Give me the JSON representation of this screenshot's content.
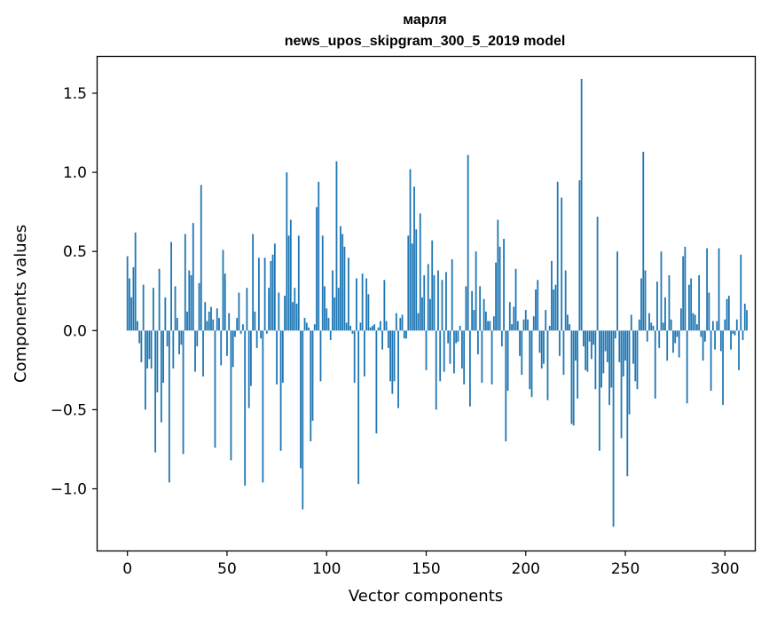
{
  "chart_data": {
    "type": "bar",
    "title": "марля",
    "subtitle": "news_upos_skipgram_300_5_2019 model",
    "xlabel": "Vector components",
    "ylabel": "Components values",
    "xlim": [
      -15,
      315
    ],
    "ylim": [
      -1.39,
      1.73
    ],
    "xticks": [
      0,
      50,
      100,
      150,
      200,
      250,
      300
    ],
    "xtick_labels": [
      "0",
      "50",
      "100",
      "150",
      "200",
      "250",
      "300"
    ],
    "yticks": [
      -1.0,
      -0.5,
      0.0,
      0.5,
      1.0,
      1.5
    ],
    "ytick_labels": [
      "−1.0",
      "−0.5",
      "0.0",
      "0.5",
      "1.0",
      "1.5"
    ],
    "bar_color": "#1f77b4",
    "values": [
      0.47,
      0.33,
      0.21,
      0.4,
      0.62,
      0.06,
      -0.08,
      -0.2,
      0.29,
      -0.5,
      -0.24,
      -0.18,
      -0.24,
      0.27,
      -0.77,
      -0.39,
      0.39,
      -0.58,
      -0.33,
      0.21,
      -0.1,
      -0.96,
      0.56,
      -0.24,
      0.28,
      0.08,
      -0.15,
      -0.09,
      -0.78,
      0.61,
      0.12,
      0.38,
      0.35,
      0.68,
      -0.26,
      -0.1,
      0.3,
      0.92,
      -0.29,
      0.18,
      0.06,
      0.12,
      0.15,
      0.07,
      -0.74,
      0.14,
      0.08,
      -0.22,
      0.51,
      0.36,
      -0.16,
      0.11,
      -0.82,
      -0.23,
      -0.04,
      0.08,
      0.24,
      -0.02,
      0.04,
      -0.98,
      0.27,
      -0.49,
      -0.35,
      0.61,
      0.12,
      -0.11,
      0.46,
      -0.05,
      -0.96,
      0.46,
      -0.02,
      0.27,
      0.44,
      0.48,
      0.55,
      -0.34,
      0.24,
      -0.76,
      -0.33,
      0.22,
      1.0,
      0.6,
      0.7,
      0.18,
      0.27,
      0.17,
      0.6,
      -0.87,
      -1.13,
      0.08,
      0.05,
      0.02,
      -0.7,
      -0.57,
      0.04,
      0.78,
      0.94,
      -0.32,
      0.6,
      0.28,
      0.14,
      0.08,
      -0.06,
      0.38,
      0.21,
      1.07,
      0.27,
      0.66,
      0.61,
      0.53,
      0.05,
      0.46,
      0.03,
      -0.02,
      -0.33,
      0.33,
      -0.97,
      0.05,
      0.36,
      -0.29,
      0.33,
      0.23,
      0.02,
      0.03,
      0.04,
      -0.65,
      0.02,
      0.06,
      -0.12,
      0.32,
      0.06,
      -0.11,
      -0.32,
      -0.4,
      -0.32,
      0.11,
      -0.49,
      0.08,
      0.1,
      -0.05,
      -0.05,
      0.6,
      1.02,
      0.55,
      0.91,
      0.64,
      0.11,
      0.74,
      0.21,
      0.35,
      -0.25,
      0.42,
      0.2,
      0.57,
      0.35,
      -0.5,
      0.38,
      -0.32,
      0.32,
      -0.26,
      0.37,
      -0.08,
      -0.21,
      0.45,
      -0.27,
      -0.08,
      -0.07,
      0.03,
      -0.24,
      -0.34,
      0.28,
      1.11,
      -0.48,
      0.25,
      0.13,
      0.5,
      -0.15,
      0.28,
      -0.33,
      0.2,
      0.12,
      0.06,
      0.06,
      -0.34,
      0.09,
      0.43,
      0.7,
      0.53,
      -0.1,
      0.58,
      -0.7,
      -0.38,
      0.18,
      0.04,
      0.15,
      0.39,
      0.06,
      -0.16,
      -0.28,
      0.07,
      0.13,
      0.07,
      -0.37,
      -0.42,
      0.09,
      0.26,
      0.32,
      -0.14,
      -0.24,
      -0.21,
      0.13,
      -0.44,
      0.03,
      0.44,
      0.26,
      0.29,
      0.94,
      -0.16,
      0.84,
      -0.28,
      0.38,
      0.1,
      0.04,
      -0.59,
      -0.6,
      -0.19,
      -0.43,
      0.95,
      1.59,
      -0.1,
      -0.25,
      -0.26,
      -0.07,
      -0.18,
      -0.09,
      -0.37,
      0.72,
      -0.76,
      -0.36,
      -0.27,
      -0.13,
      -0.2,
      -0.47,
      -0.36,
      -1.24,
      -0.05,
      0.5,
      -0.2,
      -0.68,
      -0.29,
      -0.19,
      -0.92,
      -0.53,
      0.1,
      -0.21,
      -0.32,
      -0.37,
      0.07,
      0.33,
      1.13,
      0.38,
      -0.07,
      0.11,
      0.05,
      0.03,
      -0.43,
      0.31,
      -0.11,
      0.5,
      0.05,
      0.21,
      -0.19,
      0.35,
      0.07,
      -0.14,
      -0.08,
      -0.04,
      -0.17,
      0.14,
      0.47,
      0.53,
      -0.46,
      0.29,
      0.33,
      0.11,
      0.1,
      0.04,
      0.35,
      -0.04,
      -0.19,
      -0.07,
      0.52,
      0.24,
      -0.38,
      0.06,
      -0.12,
      0.06,
      0.52,
      -0.13,
      -0.47,
      0.07,
      0.2,
      0.22,
      -0.12,
      -0.02,
      -0.03,
      0.07,
      -0.25,
      0.48,
      -0.06,
      0.17,
      0.13
    ]
  }
}
